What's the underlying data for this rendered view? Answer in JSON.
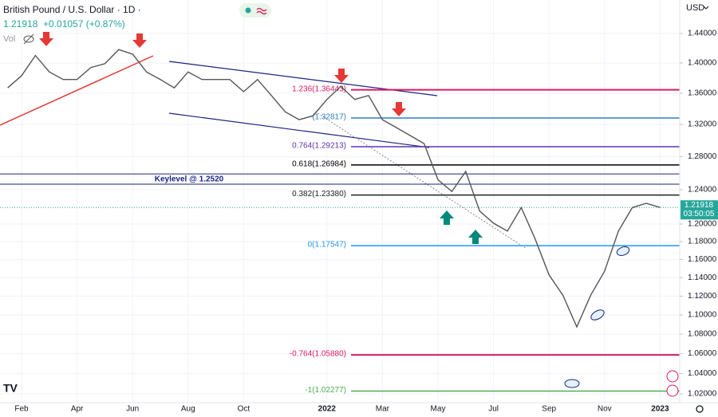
{
  "chart_data": {
    "type": "line",
    "title": "British Pound / U.S. Dollar · 1D ·",
    "last_price": 1.21918,
    "change": "+0.01057 (+0.87%)",
    "volume_label": "Vol",
    "currency": "USD",
    "countdown": "03:50:05",
    "log_scale": true,
    "grid": true,
    "color": "#555555",
    "categories": [
      null,
      "Feb",
      null,
      null,
      null,
      "Apr",
      null,
      null,
      null,
      "Jun",
      null,
      null,
      null,
      "Aug",
      null,
      null,
      null,
      "Oct",
      null,
      null,
      null,
      null,
      null,
      "2022",
      null,
      null,
      null,
      "Mar",
      null,
      null,
      null,
      "May",
      null,
      null,
      null,
      "Jul",
      null,
      null,
      null,
      "Sep",
      null,
      null,
      null,
      "Nov",
      null,
      null,
      null,
      "2023"
    ],
    "values": [
      1.367,
      1.383,
      1.41,
      1.388,
      1.378,
      1.378,
      1.394,
      1.399,
      1.418,
      1.412,
      1.388,
      1.378,
      1.367,
      1.388,
      1.378,
      1.378,
      1.378,
      1.362,
      1.378,
      1.357,
      1.336,
      1.326,
      1.331,
      1.352,
      1.369,
      1.352,
      1.357,
      1.326,
      1.316,
      1.306,
      1.296,
      1.252,
      1.238,
      1.262,
      1.215,
      1.201,
      1.192,
      1.219,
      1.183,
      1.143,
      1.121,
      1.0875,
      1.121,
      1.147,
      1.192,
      1.219,
      1.224,
      1.21918
    ],
    "ylim": [
      1.0115,
      1.4869
    ],
    "yticks": [
      {
        "value": 1.44,
        "label": "1.44000"
      },
      {
        "value": 1.4,
        "label": "1.40000"
      },
      {
        "value": 1.36,
        "label": "1.36000"
      },
      {
        "value": 1.32,
        "label": "1.32000"
      },
      {
        "value": 1.28,
        "label": "1.28000"
      },
      {
        "value": 1.24,
        "label": "1.24000"
      },
      {
        "value": 1.2,
        "label": "1.20000"
      },
      {
        "value": 1.18,
        "label": "1.18000"
      },
      {
        "value": 1.16,
        "label": "1.16000"
      },
      {
        "value": 1.14,
        "label": "1.14000"
      },
      {
        "value": 1.12,
        "label": "1.12000"
      },
      {
        "value": 1.1,
        "label": "1.10000"
      },
      {
        "value": 1.08,
        "label": "1.08000"
      },
      {
        "value": 1.06,
        "label": "1.06000"
      },
      {
        "value": 1.04,
        "label": "1.04000"
      },
      {
        "value": 1.02,
        "label": "1.02000"
      }
    ],
    "levels": [
      {
        "label": "1.236(1.36443)",
        "value": 1.36443,
        "color": "#d81b60"
      },
      {
        "label": "(1.32817)",
        "value": 1.32817,
        "color": "#2f7fc1"
      },
      {
        "label": "0.764(1.29213)",
        "value": 1.29213,
        "color": "#5e35b1"
      },
      {
        "label": "0.618(1.26984)",
        "value": 1.26984,
        "color": "#000000"
      },
      {
        "label": "0.382(1.23380)",
        "value": 1.2338,
        "color": "#222222"
      },
      {
        "label": "0(1.17547)",
        "value": 1.17547,
        "color": "#2196f3"
      },
      {
        "label": "-0.764(1.05880)",
        "value": 1.0588,
        "color": "#d81b60"
      },
      {
        "label": "-1(1.02277)",
        "value": 1.02277,
        "color": "#4caf50"
      }
    ],
    "key_level": {
      "label": "Keylevel @ 1.2520",
      "band": [
        1.259,
        1.2466
      ],
      "color": "#1a237e"
    }
  }
}
